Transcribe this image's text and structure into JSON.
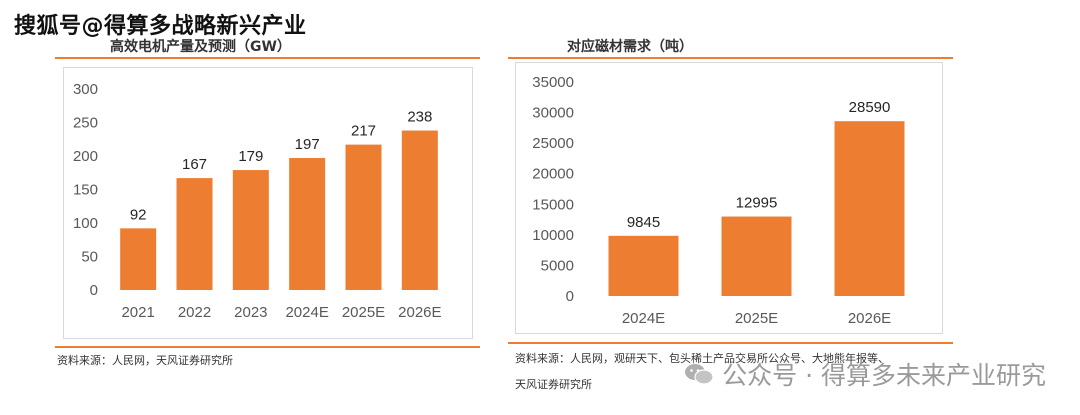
{
  "watermark_top": "搜狐号@得算多战略新兴产业",
  "watermark_bottom": "公众号 · 得算多未来产业研究",
  "colors": {
    "bar": "#ED7D31",
    "rule": "#ED7D31",
    "axis_text": "#595959"
  },
  "left": {
    "title": "高效电机产量及预测（GW）",
    "source": "资料来源：人民网，天风证券研究所"
  },
  "right": {
    "title": "对应磁材需求（吨）",
    "source_line1": "资料来源：人民网，观研天下、包头稀土产品交易所公众号、大地熊年报等、",
    "source_line2": "天风证券研究所"
  },
  "chart_data": [
    {
      "type": "bar",
      "title": "高效电机产量及预测（GW）",
      "categories": [
        "2021",
        "2022",
        "2023",
        "2024E",
        "2025E",
        "2026E"
      ],
      "values": [
        92,
        167,
        179,
        197,
        217,
        238
      ],
      "ylim": [
        0,
        300
      ],
      "yticks": [
        0,
        50,
        100,
        150,
        200,
        250,
        300
      ],
      "grid": false,
      "data_labels": true
    },
    {
      "type": "bar",
      "title": "对应磁材需求（吨）",
      "categories": [
        "2024E",
        "2025E",
        "2026E"
      ],
      "values": [
        9845,
        12995,
        28590
      ],
      "ylim": [
        0,
        35000
      ],
      "yticks": [
        0,
        5000,
        10000,
        15000,
        20000,
        25000,
        30000,
        35000
      ],
      "grid": false,
      "data_labels": true
    }
  ]
}
